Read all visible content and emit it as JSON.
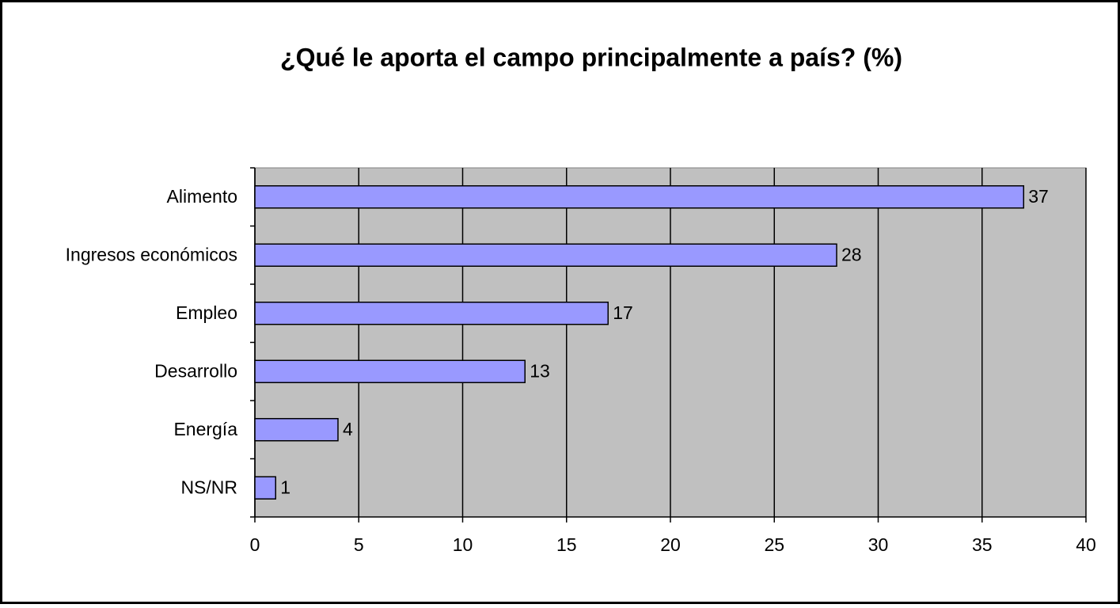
{
  "chart_data": {
    "type": "bar",
    "orientation": "horizontal",
    "title": "¿Qué le aporta el campo principalmente a país? (%)",
    "categories": [
      "Alimento",
      "Ingresos económicos",
      "Empleo",
      "Desarrollo",
      "Energía",
      "NS/NR"
    ],
    "values": [
      37,
      28,
      17,
      13,
      4,
      1
    ],
    "color": "#9999ff",
    "plot_background": "#c0c0c0",
    "xlim": [
      0,
      40
    ],
    "xticks": [
      0,
      5,
      10,
      15,
      20,
      25,
      30,
      35,
      40
    ],
    "grid": true
  }
}
